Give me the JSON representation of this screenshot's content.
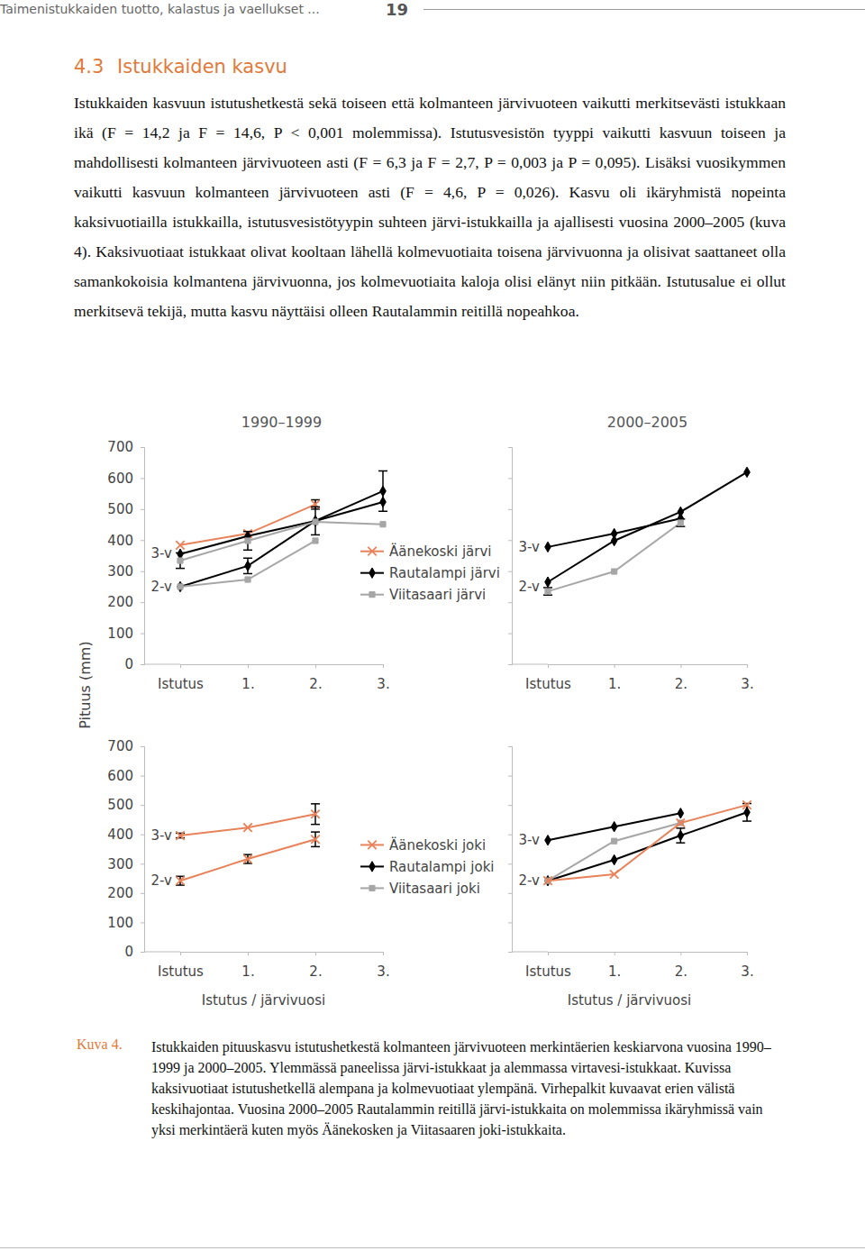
{
  "header": {
    "running_title": "Taimenistukkaiden tuotto, kalastus ja vaellukset ...",
    "page_number": "19"
  },
  "section": {
    "number": "4.3",
    "title": "Istukkaiden kasvu"
  },
  "paragraphs": [
    "Istukkaiden kasvuun istutushetkestä sekä toiseen että kolmanteen järvivuoteen vaikutti merkitsevästi istukkaan ikä (F = 14,2 ja F = 14,6, P < 0,001 molemmissa). Istutusvesistön tyyppi vaikutti kasvuun toiseen ja mahdollisesti kolmanteen järvivuoteen asti (F = 6,3 ja F = 2,7, P = 0,003 ja P = 0,095). Lisäksi vuosikymmen vaikutti kasvuun kolmanteen järvivuoteen asti (F = 4,6, P = 0,026). Kasvu oli ikäryhmistä nopeinta kaksivuotiailla istukkailla, istutusvesistötyypin suhteen järvi-istukkailla ja ajallisesti vuosina 2000–2005 (kuva 4). Kaksivuotiaat istukkaat olivat kooltaan lähellä kolmevuotiaita toisena järvivuonna ja olisivat saattaneet olla samankokoisia kolmantena järvivuonna, jos kolmevuotiaita kaloja olisi elänyt niin pitkään. Istutusalue ei ollut merkitsevä tekijä, mutta kasvu näyttäisi olleen Rautalammin reitillä nopeahkoa."
  ],
  "figure": {
    "ylabel": "Pituus (mm)"
  },
  "chart_data": [
    {
      "type": "line",
      "title": "1990–1999",
      "categories": [
        "Istutus",
        "1.",
        "2.",
        "3."
      ],
      "ylim": [
        0,
        700
      ],
      "yticks": [
        0,
        100,
        200,
        300,
        400,
        500,
        600,
        700
      ],
      "legend": "right",
      "series": [
        {
          "name": "Äänekoski järvi",
          "group": "3-v",
          "color": "#e8825a",
          "marker": "x",
          "values": [
            384,
            421,
            515,
            null
          ],
          "errors": [
            null,
            null,
            15,
            null
          ]
        },
        {
          "name": "Rautalampi järvi",
          "group": "3-v",
          "color": "#000000",
          "marker": "diamond",
          "values": [
            355,
            413,
            462,
            523
          ]
        },
        {
          "name": "Rautalampi järvi",
          "group": "2-v",
          "color": "#000000",
          "marker": "diamond",
          "values": [
            250,
            317,
            462,
            558
          ],
          "errors": [
            null,
            25,
            45,
            65
          ]
        },
        {
          "name": "Viitasaari järvi",
          "group": "3-v",
          "color": "#a6a6a6",
          "marker": "square",
          "values": [
            334,
            398,
            459,
            451
          ],
          "errors": [
            25,
            30,
            null,
            null
          ]
        },
        {
          "name": "Viitasaari järvi",
          "group": "2-v",
          "color": "#a6a6a6",
          "marker": "square",
          "values": [
            250,
            273,
            398,
            null
          ]
        }
      ]
    },
    {
      "type": "line",
      "title": "2000–2005",
      "categories": [
        "Istutus",
        "1.",
        "2.",
        "3."
      ],
      "ylim": [
        0,
        700
      ],
      "yticks": [
        0,
        100,
        200,
        300,
        400,
        500,
        600,
        700
      ],
      "tick_labels": "x",
      "series": [
        {
          "group": "3-v",
          "color": "#000000",
          "marker": "diamond",
          "values": [
            378,
            421,
            470,
            null
          ]
        },
        {
          "group": "2-v",
          "color": "#000000",
          "marker": "diamond",
          "values": [
            265,
            398,
            491,
            619
          ]
        },
        {
          "group": "2-v",
          "color": "#a6a6a6",
          "marker": "square",
          "values": [
            235,
            299,
            456,
            null
          ],
          "errors": [
            12,
            null,
            12,
            null
          ]
        }
      ]
    },
    {
      "type": "line",
      "categories": [
        "Istutus",
        "1.",
        "2.",
        "3."
      ],
      "xlabel": "Istutus / järvivuosi",
      "ylim": [
        0,
        700
      ],
      "yticks": [
        0,
        100,
        200,
        300,
        400,
        500,
        600,
        700
      ],
      "legend": "right",
      "series": [
        {
          "name": "Äänekoski joki",
          "group": "3-v",
          "color": "#e8825a",
          "marker": "x",
          "values": [
            396,
            423,
            469,
            null
          ],
          "errors": [
            8,
            null,
            35,
            null
          ]
        },
        {
          "name": "Äänekoski joki",
          "group": "2-v",
          "color": "#e8825a",
          "marker": "x",
          "values": [
            242,
            316,
            383,
            null
          ],
          "errors": [
            15,
            15,
            25,
            null
          ]
        },
        {
          "name": "Rautalampi joki",
          "group": "3-v",
          "color": "#000000",
          "marker": "diamond",
          "values": [
            null,
            null,
            null,
            null
          ]
        },
        {
          "name": "Viitasaari joki",
          "group": "2-v",
          "color": "#a6a6a6",
          "marker": "square",
          "values": [
            null,
            null,
            null,
            null
          ]
        }
      ]
    },
    {
      "type": "line",
      "categories": [
        "Istutus",
        "1.",
        "2.",
        "3."
      ],
      "xlabel": "Istutus / järvivuosi",
      "ylim": [
        0,
        700
      ],
      "yticks": [
        0,
        100,
        200,
        300,
        400,
        500,
        600,
        700
      ],
      "tick_labels": "x",
      "series": [
        {
          "group": "3-v",
          "color": "#000000",
          "marker": "diamond",
          "values": [
            380,
            426,
            472,
            null
          ]
        },
        {
          "group": "2-v",
          "color": "#000000",
          "marker": "diamond",
          "values": [
            242,
            313,
            396,
            475
          ],
          "errors": [
            null,
            null,
            25,
            30
          ]
        },
        {
          "group": "2-v",
          "color": "#a6a6a6",
          "marker": "square",
          "values": [
            242,
            377,
            439,
            null
          ]
        },
        {
          "group": "2-v",
          "color": "#e8825a",
          "marker": "x",
          "values": [
            242,
            264,
            439,
            500
          ]
        }
      ]
    }
  ],
  "caption": {
    "label": "Kuva 4.",
    "text": "Istukkaiden pituuskasvu istutushetkestä kolmanteen järvivuoteen merkintäerien keskiarvona vuosina 1990–1999 ja 2000–2005. Ylemmässä paneelissa järvi-istukkaat ja alemmassa virtavesi-istukkaat. Kuvissa kaksivuotiaat istutushetkellä alempana ja kolmevuotiaat ylempänä. Virhepalkit kuvaavat erien välistä keskihajontaa. Vuosina 2000–2005 Rautalammin reitillä järvi-istukkaita on molemmissa ikäryhmissä vain yksi merkintäerä kuten myös Äänekosken ja Viitasaaren joki-istukkaita."
  }
}
